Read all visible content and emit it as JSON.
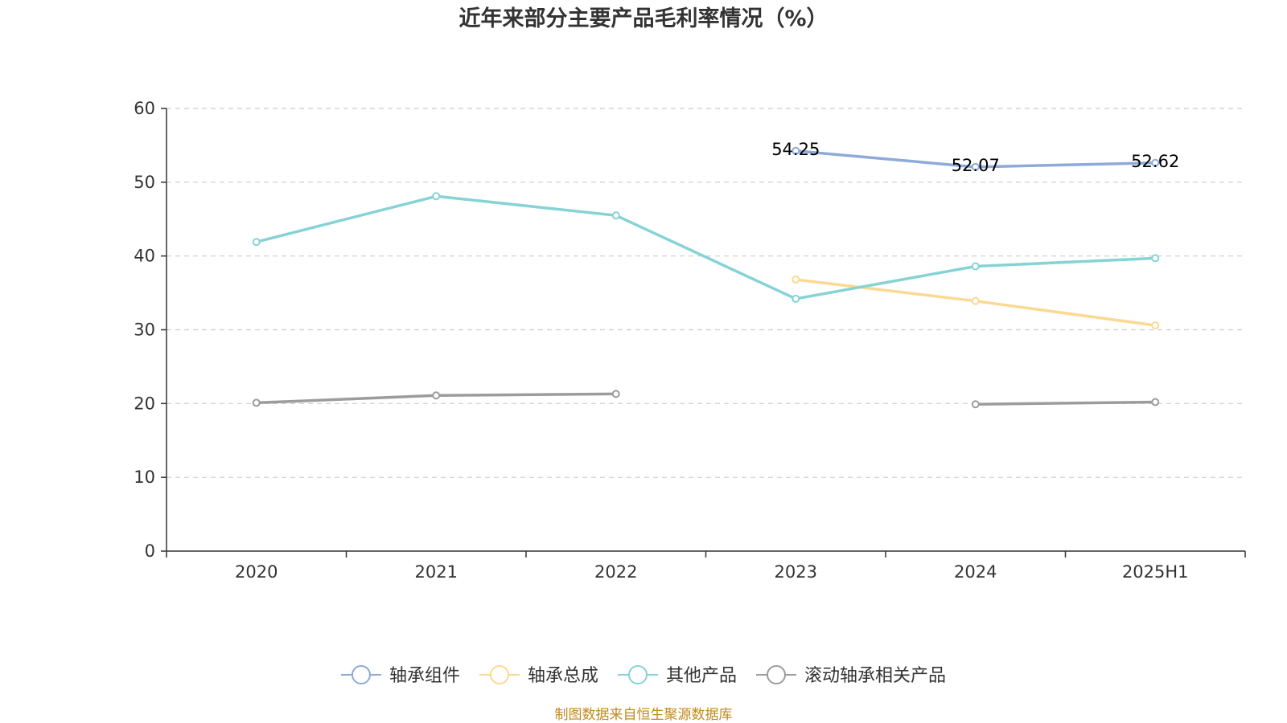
{
  "chart_data": {
    "type": "line",
    "title": "近年来部分主要产品毛利率情况（%）",
    "categories": [
      "2020",
      "2021",
      "2022",
      "2023",
      "2024",
      "2025H1"
    ],
    "ylim": [
      0,
      60
    ],
    "yticks": [
      0,
      10,
      20,
      30,
      40,
      50,
      60
    ],
    "grid": true,
    "legend_position": "bottom",
    "series": [
      {
        "name": "轴承组件",
        "color": "#8eaad8",
        "values": [
          null,
          null,
          null,
          54.25,
          52.07,
          52.62
        ],
        "labels": [
          null,
          null,
          null,
          "54.25",
          "52.07",
          "52.62"
        ]
      },
      {
        "name": "轴承总成",
        "color": "#fcd993",
        "values": [
          null,
          null,
          null,
          36.8,
          33.9,
          30.6
        ],
        "labels": [
          null,
          null,
          null,
          null,
          null,
          null
        ]
      },
      {
        "name": "其他产品",
        "color": "#86d3d6",
        "values": [
          41.9,
          48.1,
          45.5,
          34.2,
          38.6,
          39.7
        ],
        "labels": [
          null,
          null,
          null,
          null,
          null,
          null
        ]
      },
      {
        "name": "滚动轴承相关产品",
        "color": "#9c9c9c",
        "values": [
          20.1,
          21.1,
          21.3,
          null,
          19.9,
          20.2
        ],
        "labels": [
          null,
          null,
          null,
          null,
          null,
          null
        ]
      }
    ]
  },
  "footer": {
    "source": "制图数据来自恒生聚源数据库"
  }
}
